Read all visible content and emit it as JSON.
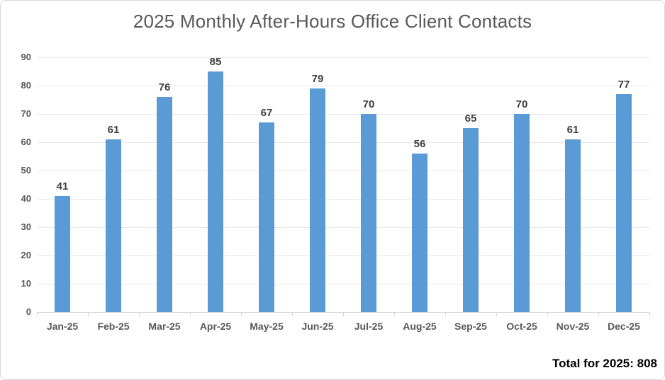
{
  "colors": {
    "bar": "#5B9BD5",
    "gridline": "#E7E7E7",
    "axis_line": "#D6D6D6",
    "axis_text": "#595959",
    "data_label_text": "#3F3F3F",
    "title_text": "#595959",
    "total_text": "#000000"
  },
  "chart_data": {
    "type": "bar",
    "title": "2025 Monthly After-Hours Office Client Contacts",
    "categories": [
      "Jan-25",
      "Feb-25",
      "Mar-25",
      "Apr-25",
      "May-25",
      "Jun-25",
      "Jul-25",
      "Aug-25",
      "Sep-25",
      "Oct-25",
      "Nov-25",
      "Dec-25"
    ],
    "values": [
      41,
      61,
      76,
      85,
      67,
      79,
      70,
      56,
      65,
      70,
      61,
      77
    ],
    "data_labels": true,
    "xlabel": "",
    "ylabel": "",
    "ylim": [
      0,
      90
    ],
    "yticks": [
      0,
      10,
      20,
      30,
      40,
      50,
      60,
      70,
      80,
      90
    ],
    "grid": true,
    "legend": false,
    "annotation": "Total for 2025: 808"
  }
}
